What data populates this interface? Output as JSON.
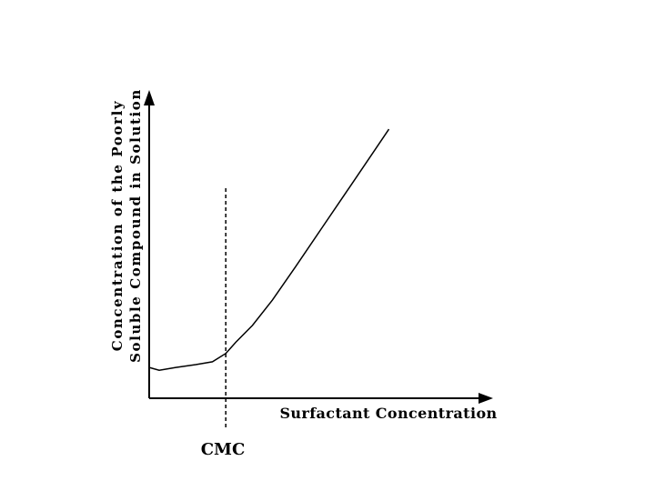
{
  "chart_data": {
    "type": "line",
    "title": "",
    "xlabel": "Surfactant Concentration",
    "ylabel_lines": [
      "Concentration of the Poorly",
      "Soluble Compound in Solution"
    ],
    "annotations": [
      {
        "label": "CMC",
        "kind": "vertical-dashed-line"
      }
    ],
    "ticks": false,
    "grid": false,
    "legend": "none",
    "series": [
      {
        "x": [
          0.0,
          0.03,
          0.08,
          0.14,
          0.19,
          0.23,
          0.26,
          0.31,
          0.37,
          0.44,
          0.52,
          0.6,
          0.68,
          0.72
        ],
        "y": [
          0.11,
          0.1,
          0.11,
          0.12,
          0.13,
          0.16,
          0.2,
          0.26,
          0.35,
          0.47,
          0.61,
          0.75,
          0.89,
          0.96
        ]
      }
    ],
    "cmc_x": 0.23,
    "xlim": [
      0,
      1
    ],
    "ylim": [
      0,
      1.1
    ]
  }
}
